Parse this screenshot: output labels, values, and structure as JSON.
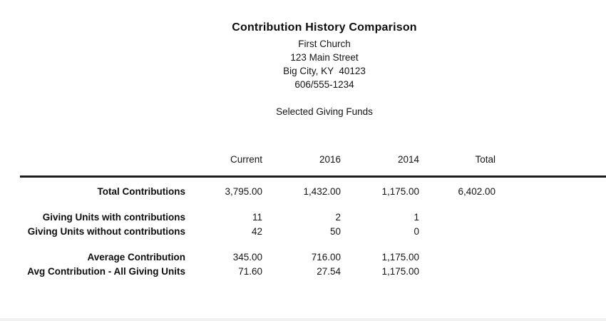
{
  "report": {
    "title": "Contribution History Comparison",
    "org_name": "First Church",
    "address_street": "123 Main Street",
    "address_city": "Big City, KY  40123",
    "phone": "606/555-1234",
    "subtitle": "Selected Giving Funds"
  },
  "table": {
    "columns": [
      "Current",
      "2016",
      "2014",
      "Total"
    ],
    "rows": [
      {
        "label": "Total Contributions",
        "values": [
          "3,795.00",
          "1,432.00",
          "1,175.00",
          "6,402.00"
        ]
      },
      {
        "label": "Giving Units with contributions",
        "values": [
          "11",
          "2",
          "1",
          ""
        ]
      },
      {
        "label": "Giving Units without contributions",
        "values": [
          "42",
          "50",
          "0",
          ""
        ]
      },
      {
        "label": "Average Contribution",
        "values": [
          "345.00",
          "716.00",
          "1,175.00",
          ""
        ]
      },
      {
        "label": "Avg Contribution - All Giving Units",
        "values": [
          "71.60",
          "27.54",
          "1,175.00",
          ""
        ]
      }
    ]
  },
  "colors": {
    "text": "#111111",
    "rule": "#1c1c1c",
    "background": "#ffffff",
    "bottom_strip": "#f1f1f1"
  }
}
